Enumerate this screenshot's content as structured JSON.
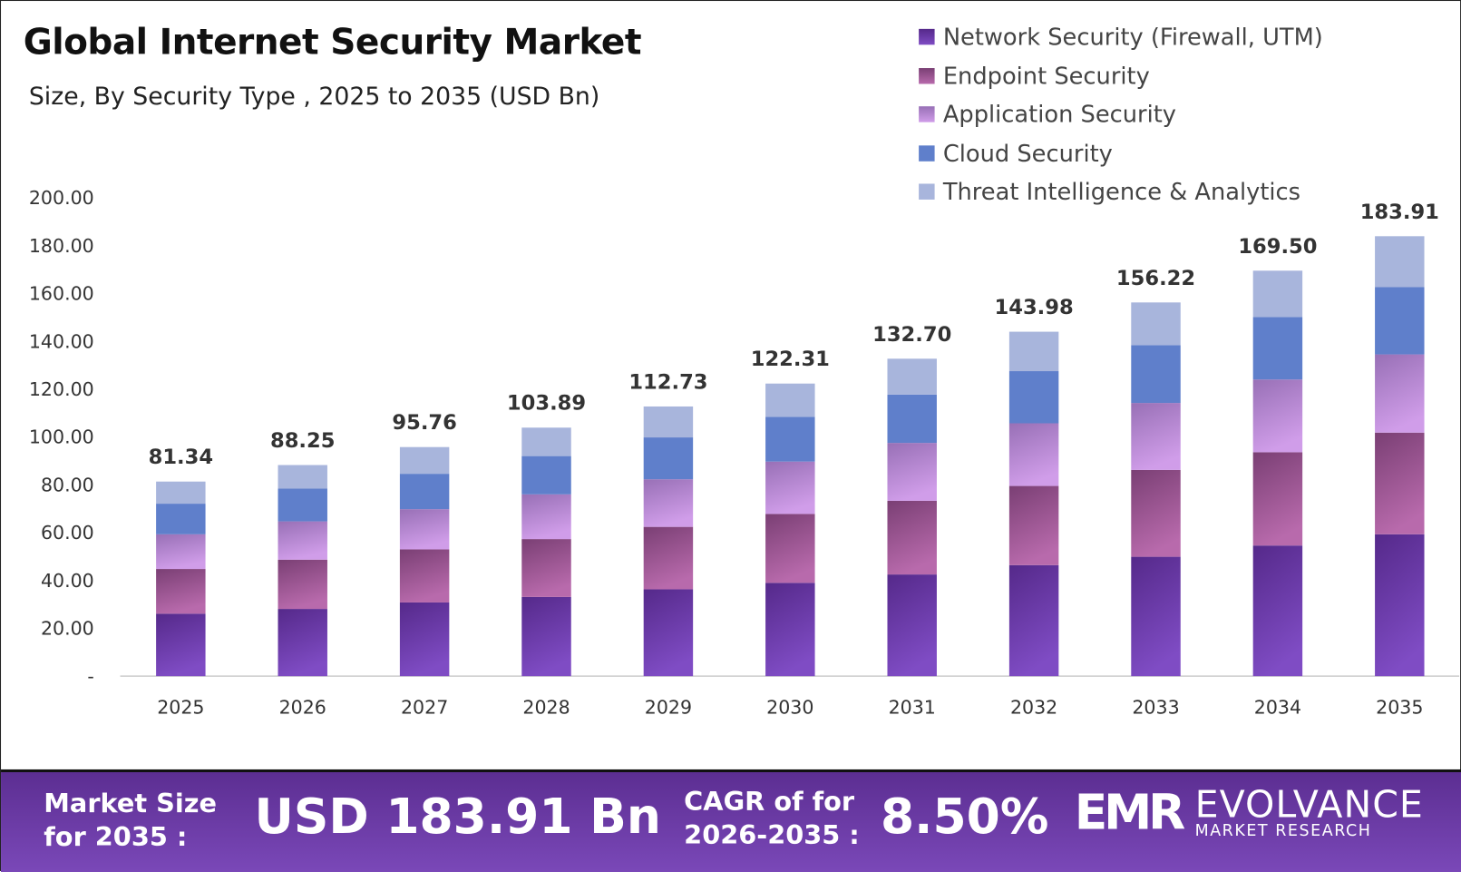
{
  "colors": {
    "network": [
      "#55298a",
      "#7f4cc4"
    ],
    "endpoint": [
      "#7a3f74",
      "#b86aac"
    ],
    "application": [
      "#9870b6",
      "#d09de9"
    ],
    "cloud": [
      "#5f7fcb",
      "#5f7fcb"
    ],
    "threat": [
      "#a8b5dc",
      "#a8b5dc"
    ],
    "footer": "#6a3aa6"
  },
  "footer": {
    "market_label_1": "Market Size",
    "market_label_2": "for 2035 :",
    "market_value": "USD 183.91 Bn",
    "cagr_label_1": "CAGR of for",
    "cagr_label_2": "2026-2035 :",
    "cagr_value": "8.50%",
    "logo_text": "EMR",
    "brand": "EVOLVANCE",
    "brand_sub": "MARKET RESEARCH"
  },
  "chart_data": {
    "type": "bar",
    "stacked": true,
    "title": "Global Internet Security Market",
    "subtitle": "Size, By Security Type , 2025 to 2035 (USD Bn)",
    "xlabel": "",
    "ylabel": "",
    "ylim": [
      0,
      200
    ],
    "yticks": [
      "-",
      "20.00",
      "40.00",
      "60.00",
      "80.00",
      "100.00",
      "120.00",
      "140.00",
      "160.00",
      "180.00",
      "200.00"
    ],
    "grid": false,
    "legend_position": "top-right",
    "categories": [
      "2025",
      "2026",
      "2027",
      "2028",
      "2029",
      "2030",
      "2031",
      "2032",
      "2033",
      "2034",
      "2035"
    ],
    "series": [
      {
        "name": "Network Security (Firewall, UTM)",
        "key": "network",
        "values": [
          26.1,
          28.1,
          30.8,
          33.1,
          36.3,
          39.0,
          42.5,
          46.4,
          49.9,
          54.6,
          59.3
        ]
      },
      {
        "name": "Endpoint Security",
        "key": "endpoint",
        "values": [
          18.7,
          20.6,
          22.2,
          24.2,
          26.1,
          28.8,
          30.8,
          33.1,
          36.3,
          39.0,
          42.5
        ]
      },
      {
        "name": "Application Security",
        "key": "application",
        "values": [
          14.5,
          16.0,
          16.8,
          18.7,
          19.9,
          21.9,
          24.2,
          26.2,
          28.0,
          30.4,
          32.7
        ]
      },
      {
        "name": "Cloud Security",
        "key": "cloud",
        "values": [
          12.8,
          13.7,
          14.8,
          16.0,
          17.5,
          18.7,
          20.2,
          21.8,
          24.2,
          26.1,
          28.1
        ]
      },
      {
        "name": "Threat Intelligence & Analytics",
        "key": "threat",
        "values": [
          9.24,
          9.85,
          11.16,
          11.89,
          12.93,
          13.91,
          15.0,
          16.48,
          17.82,
          19.4,
          21.31
        ]
      }
    ],
    "totals": [
      "81.34",
      "88.25",
      "95.76",
      "103.89",
      "112.73",
      "122.31",
      "132.70",
      "143.98",
      "156.22",
      "169.50",
      "183.91"
    ]
  }
}
